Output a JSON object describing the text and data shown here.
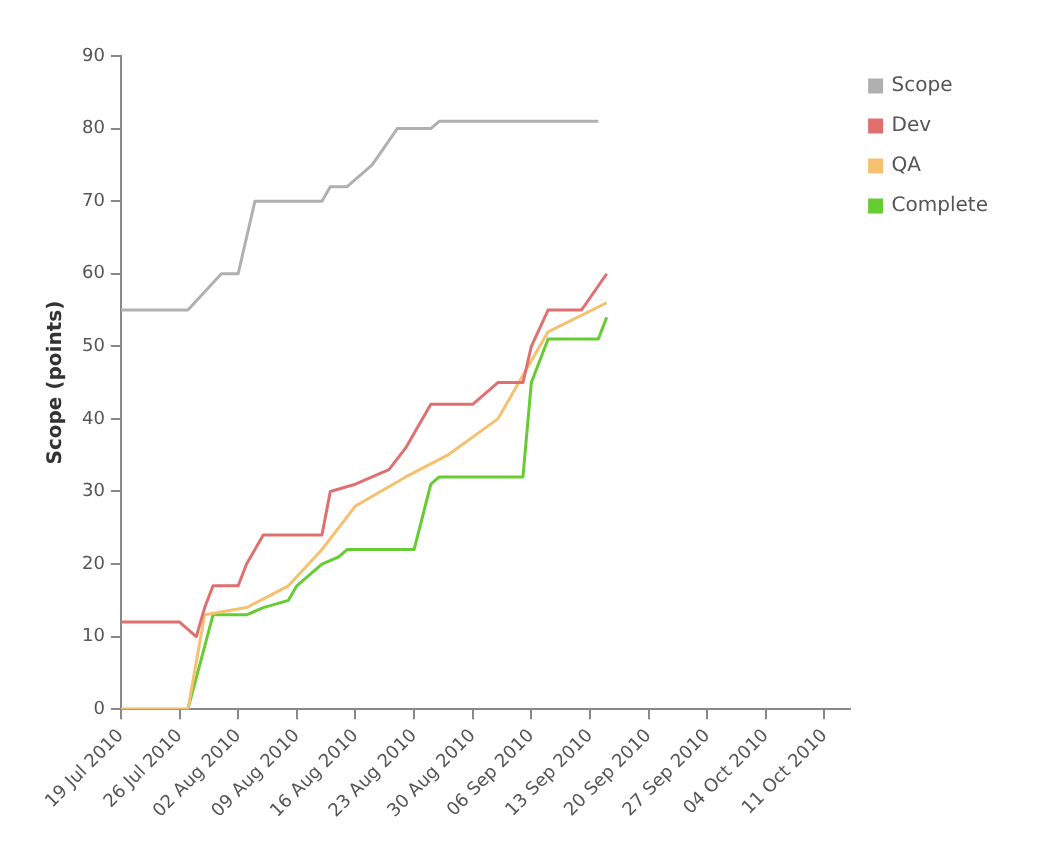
{
  "chart_data": {
    "type": "line",
    "ylabel": "Scope (points)",
    "legend": "top right",
    "grid": false,
    "marker": "none",
    "line_style": "solid",
    "xlim": [
      "2010-07-19",
      "2010-10-14"
    ],
    "xticks": [
      {
        "value": "2010-07-19",
        "label": "19 Jul 2010"
      },
      {
        "value": "2010-07-26",
        "label": "26 Jul 2010"
      },
      {
        "value": "2010-08-02",
        "label": "02 Aug 2010"
      },
      {
        "value": "2010-08-09",
        "label": "09 Aug 2010"
      },
      {
        "value": "2010-08-16",
        "label": "16 Aug 2010"
      },
      {
        "value": "2010-08-23",
        "label": "23 Aug 2010"
      },
      {
        "value": "2010-08-30",
        "label": "30 Aug 2010"
      },
      {
        "value": "2010-09-06",
        "label": "06 Sep 2010"
      },
      {
        "value": "2010-09-13",
        "label": "13 Sep 2010"
      },
      {
        "value": "2010-09-20",
        "label": "20 Sep 2010"
      },
      {
        "value": "2010-09-27",
        "label": "27 Sep 2010"
      },
      {
        "value": "2010-10-04",
        "label": "04 Oct 2010"
      },
      {
        "value": "2010-10-11",
        "label": "11 Oct 2010"
      }
    ],
    "ylim": [
      0,
      90
    ],
    "yticks": [
      0,
      10,
      20,
      30,
      40,
      50,
      60,
      70,
      80,
      90
    ],
    "series": [
      {
        "name": "Scope",
        "color": "#b0b0b0",
        "x": [
          "2010-07-19",
          "2010-07-27",
          "2010-07-31",
          "2010-08-02",
          "2010-08-04",
          "2010-08-12",
          "2010-08-13",
          "2010-08-15",
          "2010-08-18",
          "2010-08-21",
          "2010-08-25",
          "2010-08-26",
          "2010-09-14"
        ],
        "values": [
          55,
          55,
          60,
          60,
          70,
          70,
          72,
          72,
          75,
          80,
          80,
          81,
          81
        ]
      },
      {
        "name": "Dev",
        "color": "#e07070",
        "x": [
          "2010-07-19",
          "2010-07-26",
          "2010-07-28",
          "2010-07-29",
          "2010-07-30",
          "2010-08-02",
          "2010-08-03",
          "2010-08-05",
          "2010-08-12",
          "2010-08-13",
          "2010-08-16",
          "2010-08-20",
          "2010-08-22",
          "2010-08-25",
          "2010-08-30",
          "2010-09-02",
          "2010-09-05",
          "2010-09-06",
          "2010-09-08",
          "2010-09-12",
          "2010-09-15"
        ],
        "values": [
          12,
          12,
          10,
          14,
          17,
          17,
          20,
          24,
          24,
          30,
          31,
          33,
          36,
          42,
          42,
          45,
          45,
          50,
          55,
          55,
          60
        ]
      },
      {
        "name": "QA",
        "color": "#f5c070",
        "x": [
          "2010-07-19",
          "2010-07-27",
          "2010-07-29",
          "2010-08-03",
          "2010-08-08",
          "2010-08-12",
          "2010-08-16",
          "2010-08-22",
          "2010-08-27",
          "2010-09-02",
          "2010-09-06",
          "2010-09-08",
          "2010-09-15"
        ],
        "values": [
          0,
          0,
          13,
          14,
          17,
          22,
          28,
          32,
          35,
          40,
          48,
          52,
          56
        ]
      },
      {
        "name": "Complete",
        "color": "#66cc33",
        "x": [
          "2010-07-19",
          "2010-07-27",
          "2010-07-30",
          "2010-08-03",
          "2010-08-05",
          "2010-08-08",
          "2010-08-09",
          "2010-08-10",
          "2010-08-12",
          "2010-08-14",
          "2010-08-15",
          "2010-08-23",
          "2010-08-25",
          "2010-08-26",
          "2010-09-05",
          "2010-09-06",
          "2010-09-08",
          "2010-09-14",
          "2010-09-15"
        ],
        "values": [
          0,
          0,
          13,
          13,
          14,
          15,
          17,
          18,
          20,
          21,
          22,
          22,
          31,
          32,
          32,
          45,
          51,
          51,
          54
        ]
      }
    ]
  }
}
